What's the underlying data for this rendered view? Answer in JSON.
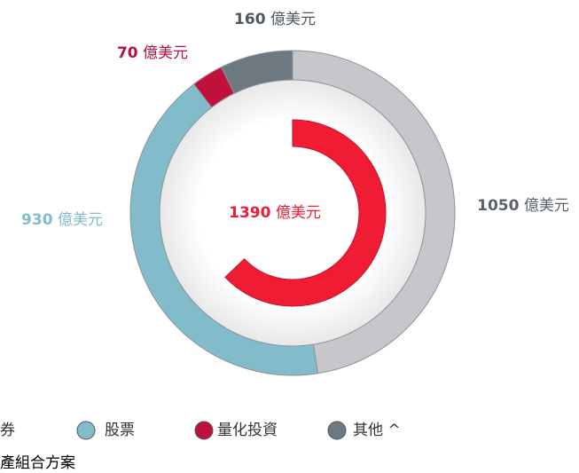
{
  "chart_data": {
    "type": "donut",
    "unit": "億美元",
    "categories": [
      "券",
      "股票",
      "量化投資",
      "其他 ^"
    ],
    "values": [
      1050,
      930,
      70,
      160
    ],
    "colors": [
      "#c5c7cb",
      "#82bccb",
      "#c0103c",
      "#6e7880"
    ],
    "label_colors": [
      "#5a6168",
      "#82bccb",
      "#b5123e",
      "#4f5860"
    ],
    "inner": {
      "value": 1390,
      "color": "#f01c34"
    },
    "footer": "產組合方案"
  }
}
